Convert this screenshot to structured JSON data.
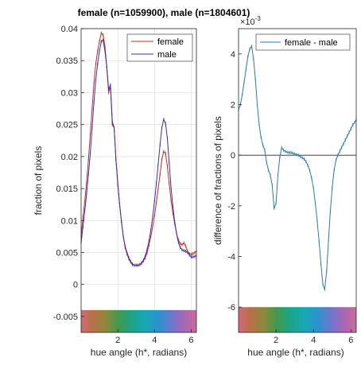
{
  "chart_data": [
    {
      "type": "line",
      "title": "female (n=1059900), male (n=1804601)",
      "xlabel": "hue angle (h*, radians)",
      "ylabel": "fraction of pixels",
      "xlim": [
        0,
        6.283
      ],
      "ylim": [
        -0.0075,
        0.04
      ],
      "colorbar_range": [
        -0.0075,
        -0.004
      ],
      "xticks": [
        2,
        4,
        6
      ],
      "xtick_labels": [
        "2",
        "4",
        "6"
      ],
      "yticks": [
        0.04,
        0.035,
        0.03,
        0.025,
        0.02,
        0.015,
        0.01,
        0.005,
        0,
        -0.005
      ],
      "ytick_labels": [
        "0.04",
        "0.035",
        "0.03",
        "0.025",
        "0.02",
        "0.015",
        "0.01",
        "0.005",
        "0",
        "-0.005"
      ],
      "grid": true,
      "legend": "top-right",
      "series": [
        {
          "name": "female",
          "color": "#cc2a1f",
          "x": [
            0.0,
            0.1,
            0.2,
            0.3,
            0.4,
            0.5,
            0.6,
            0.7,
            0.8,
            0.9,
            1.0,
            1.1,
            1.2,
            1.3,
            1.4,
            1.5,
            1.6,
            1.7,
            1.8,
            1.9,
            2.0,
            2.1,
            2.2,
            2.3,
            2.4,
            2.5,
            2.6,
            2.7,
            2.8,
            2.9,
            3.0,
            3.1,
            3.2,
            3.3,
            3.4,
            3.5,
            3.6,
            3.7,
            3.8,
            3.9,
            4.0,
            4.1,
            4.2,
            4.3,
            4.4,
            4.5,
            4.6,
            4.7,
            4.8,
            4.9,
            5.0,
            5.1,
            5.2,
            5.3,
            5.4,
            5.5,
            5.6,
            5.7,
            5.8,
            5.9,
            6.0,
            6.1,
            6.2,
            6.283
          ],
          "values": [
            0.0075,
            0.0105,
            0.013,
            0.016,
            0.0195,
            0.0235,
            0.0275,
            0.0315,
            0.0345,
            0.0365,
            0.038,
            0.0393,
            0.039,
            0.0372,
            0.034,
            0.03,
            0.031,
            0.025,
            0.0245,
            0.0195,
            0.0155,
            0.0125,
            0.0098,
            0.0075,
            0.006,
            0.005,
            0.0042,
            0.0036,
            0.0032,
            0.003,
            0.003,
            0.003,
            0.0031,
            0.0033,
            0.0037,
            0.0042,
            0.005,
            0.0062,
            0.0075,
            0.009,
            0.0108,
            0.0128,
            0.015,
            0.0172,
            0.0195,
            0.0208,
            0.0205,
            0.0185,
            0.0158,
            0.0132,
            0.0112,
            0.0095,
            0.008,
            0.007,
            0.0064,
            0.0062,
            0.0065,
            0.006,
            0.0052,
            0.0048,
            0.0047,
            0.0048,
            0.005,
            0.0052
          ]
        },
        {
          "name": "male",
          "color": "#3a2fb0",
          "x": [
            0.0,
            0.1,
            0.2,
            0.3,
            0.4,
            0.5,
            0.6,
            0.7,
            0.8,
            0.9,
            1.0,
            1.1,
            1.2,
            1.3,
            1.4,
            1.5,
            1.6,
            1.7,
            1.8,
            1.9,
            2.0,
            2.1,
            2.2,
            2.3,
            2.4,
            2.5,
            2.6,
            2.7,
            2.8,
            2.9,
            3.0,
            3.1,
            3.2,
            3.3,
            3.4,
            3.5,
            3.6,
            3.7,
            3.8,
            3.9,
            4.0,
            4.1,
            4.2,
            4.3,
            4.4,
            4.5,
            4.6,
            4.7,
            4.8,
            4.9,
            5.0,
            5.1,
            5.2,
            5.3,
            5.4,
            5.5,
            5.6,
            5.7,
            5.8,
            5.9,
            6.0,
            6.1,
            6.2,
            6.283
          ],
          "values": [
            0.0065,
            0.009,
            0.0115,
            0.0142,
            0.0172,
            0.0205,
            0.0245,
            0.0285,
            0.032,
            0.0345,
            0.0365,
            0.038,
            0.0382,
            0.0365,
            0.034,
            0.0305,
            0.0312,
            0.0255,
            0.0245,
            0.0195,
            0.0158,
            0.0125,
            0.0098,
            0.0075,
            0.0058,
            0.0048,
            0.004,
            0.0035,
            0.0031,
            0.003,
            0.003,
            0.003,
            0.0031,
            0.0034,
            0.0038,
            0.0045,
            0.0055,
            0.0068,
            0.0085,
            0.0105,
            0.013,
            0.0158,
            0.0188,
            0.0218,
            0.0245,
            0.0258,
            0.0252,
            0.0228,
            0.019,
            0.0152,
            0.0122,
            0.0098,
            0.008,
            0.0066,
            0.0058,
            0.0054,
            0.0053,
            0.0052,
            0.005,
            0.0046,
            0.0043,
            0.0043,
            0.0044,
            0.0045
          ]
        }
      ]
    },
    {
      "type": "line",
      "xlabel": "hue angle (h*, radians)",
      "ylabel": "difference of fractions of pixels",
      "exponent_label": "×10",
      "exponent_value": "-3",
      "xlim": [
        0,
        6.283
      ],
      "ylim": [
        -7,
        5
      ],
      "colorbar_range": [
        -7,
        -6
      ],
      "xticks": [
        2,
        4,
        6
      ],
      "xtick_labels": [
        "2",
        "4",
        "6"
      ],
      "yticks": [
        4,
        2,
        0,
        -2,
        -4,
        -6
      ],
      "ytick_labels": [
        "4",
        "2",
        "0",
        "-2",
        "-4",
        "-6"
      ],
      "zero_line": true,
      "grid": false,
      "legend": "top-right",
      "series": [
        {
          "name": "female - male",
          "color": "#2d7ba6",
          "x": [
            0.0,
            0.1,
            0.2,
            0.3,
            0.4,
            0.5,
            0.6,
            0.7,
            0.8,
            0.9,
            1.0,
            1.1,
            1.2,
            1.3,
            1.4,
            1.5,
            1.6,
            1.7,
            1.8,
            1.9,
            2.0,
            2.1,
            2.2,
            2.3,
            2.4,
            2.5,
            2.6,
            2.7,
            2.8,
            2.9,
            3.0,
            3.1,
            3.2,
            3.3,
            3.4,
            3.5,
            3.6,
            3.7,
            3.8,
            3.9,
            4.0,
            4.1,
            4.2,
            4.3,
            4.4,
            4.5,
            4.6,
            4.7,
            4.8,
            4.9,
            5.0,
            5.1,
            5.2,
            5.3,
            5.4,
            5.5,
            5.6,
            5.7,
            5.8,
            5.9,
            6.0,
            6.1,
            6.2,
            6.283
          ],
          "values": [
            1.8,
            2.0,
            2.4,
            2.9,
            3.4,
            3.9,
            4.2,
            4.3,
            3.8,
            3.0,
            2.0,
            1.2,
            0.7,
            0.4,
            0.2,
            -0.3,
            -0.6,
            -0.8,
            -1.2,
            -2.1,
            -1.9,
            -0.8,
            -0.1,
            0.3,
            0.2,
            0.15,
            0.12,
            0.1,
            0.1,
            0.08,
            0.05,
            0.03,
            0.0,
            -0.05,
            -0.1,
            -0.15,
            -0.25,
            -0.4,
            -0.6,
            -0.9,
            -1.3,
            -1.9,
            -2.6,
            -3.4,
            -4.3,
            -5.1,
            -5.3,
            -4.6,
            -3.4,
            -2.2,
            -1.3,
            -0.6,
            -0.2,
            0.0,
            0.15,
            0.3,
            0.45,
            0.6,
            0.75,
            0.9,
            1.05,
            1.2,
            1.3,
            1.4
          ]
        }
      ]
    }
  ]
}
